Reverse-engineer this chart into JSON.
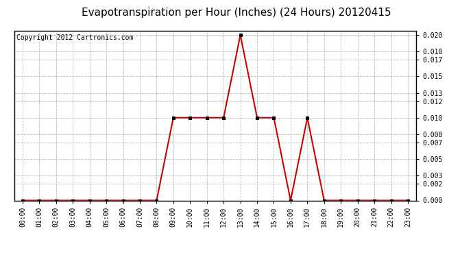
{
  "title": "Evapotranspiration per Hour (Inches) (24 Hours) 20120415",
  "copyright_text": "Copyright 2012 Cartronics.com",
  "hours": [
    "00:00",
    "01:00",
    "02:00",
    "03:00",
    "04:00",
    "05:00",
    "06:00",
    "07:00",
    "08:00",
    "09:00",
    "10:00",
    "11:00",
    "12:00",
    "13:00",
    "14:00",
    "15:00",
    "16:00",
    "17:00",
    "18:00",
    "19:00",
    "20:00",
    "21:00",
    "22:00",
    "23:00"
  ],
  "values": [
    0.0,
    0.0,
    0.0,
    0.0,
    0.0,
    0.0,
    0.0,
    0.0,
    0.0,
    0.01,
    0.01,
    0.01,
    0.01,
    0.02,
    0.01,
    0.01,
    0.0,
    0.01,
    0.0,
    0.0,
    0.0,
    0.0,
    0.0,
    0.0
  ],
  "line_color": "#cc0000",
  "marker_color": "#000000",
  "fig_bg_color": "#ffffff",
  "plot_bg_color": "#ffffff",
  "grid_color": "#bbbbbb",
  "border_color": "#000000",
  "title_color": "#000000",
  "ylim": [
    0.0,
    0.0205
  ],
  "yticks": [
    0.0,
    0.002,
    0.003,
    0.005,
    0.007,
    0.008,
    0.01,
    0.012,
    0.013,
    0.015,
    0.017,
    0.018,
    0.02
  ],
  "title_fontsize": 11,
  "tick_fontsize": 7,
  "copyright_fontsize": 7
}
